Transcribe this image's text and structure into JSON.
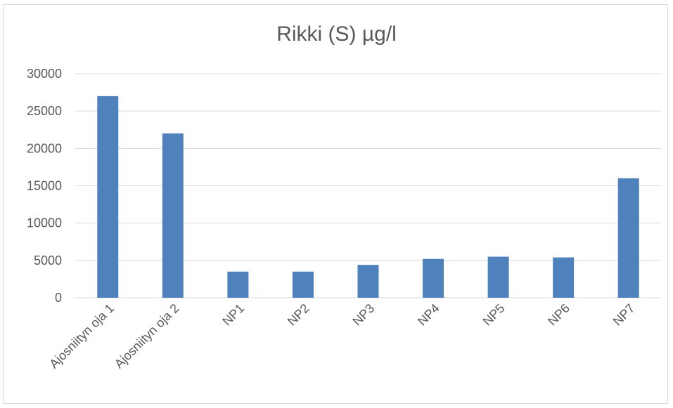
{
  "chart_data": {
    "type": "bar",
    "title": "Rikki (S) µg/l",
    "xlabel": "",
    "ylabel": "",
    "categories": [
      "Ajosniityn oja 1",
      "Ajosniityn oja 2",
      "NP1",
      "NP2",
      "NP3",
      "NP4",
      "NP5",
      "NP6",
      "NP7"
    ],
    "values": [
      27000,
      22000,
      3500,
      3500,
      4400,
      5200,
      5500,
      5400,
      16000
    ],
    "ylim": [
      0,
      30000
    ],
    "yticks": [
      "0",
      "5000",
      "10000",
      "15000",
      "20000",
      "25000",
      "30000"
    ],
    "grid": true,
    "legend": "none",
    "bar_color": "#4f81bd",
    "grid_color": "#d9d9d9"
  }
}
